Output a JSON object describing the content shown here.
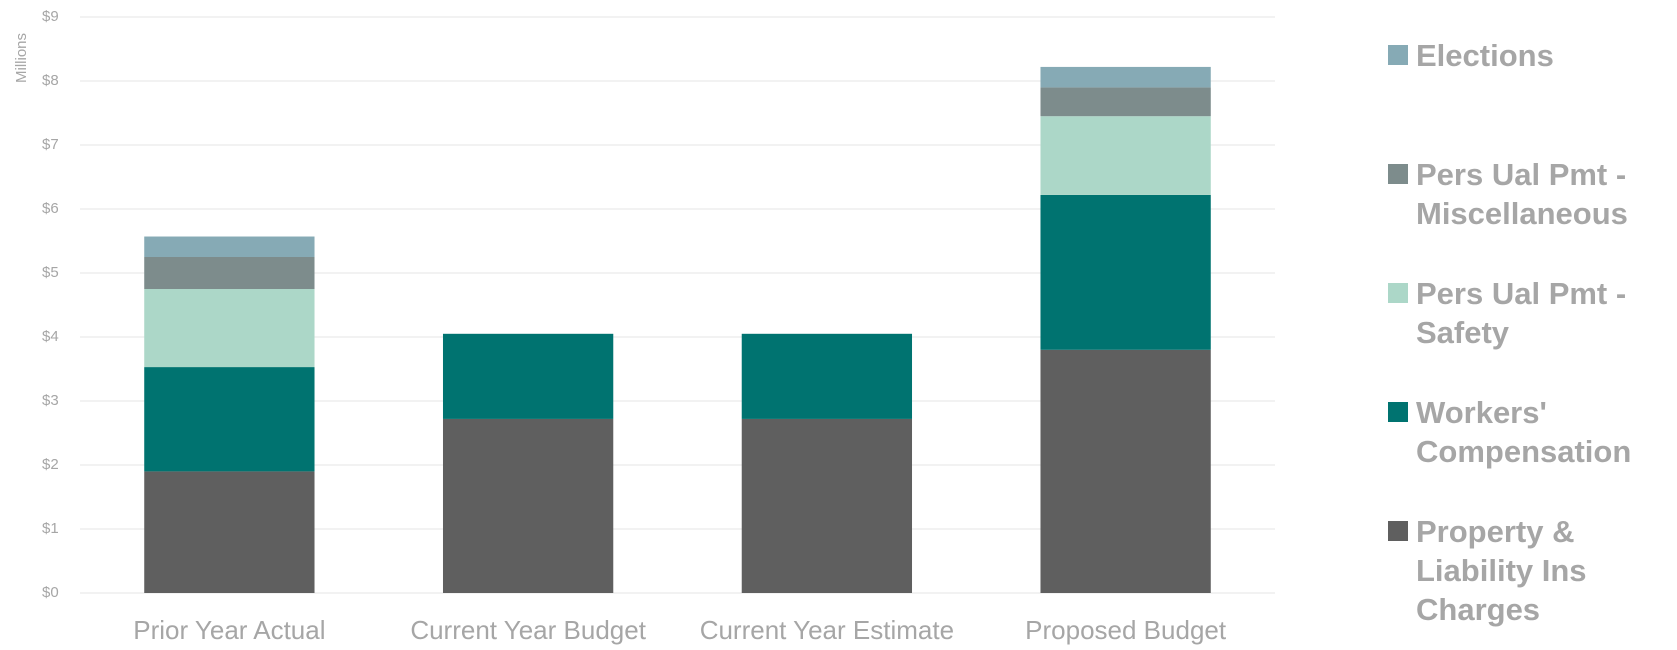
{
  "chart_data": {
    "type": "stacked_bar",
    "y_label": "Millions",
    "categories": [
      "Prior Year Actual",
      "Current Year Budget",
      "Current Year Estimate",
      "Proposed Budget"
    ],
    "series": [
      {
        "name": "Property & Liability Ins Charges",
        "color": "#5f5f5f",
        "values": [
          1.9,
          2.72,
          2.72,
          3.8
        ]
      },
      {
        "name": "Workers' Compensation",
        "color": "#007370",
        "values": [
          1.63,
          1.33,
          1.33,
          2.42
        ]
      },
      {
        "name": "Pers Ual Pmt - Safety",
        "color": "#acd7c8",
        "values": [
          1.22,
          0,
          0,
          1.23
        ]
      },
      {
        "name": "Pers Ual Pmt - Miscellaneous",
        "color": "#7d8c8c",
        "values": [
          0.5,
          0,
          0,
          0.45
        ]
      },
      {
        "name": "Elections",
        "color": "#86aab5",
        "values": [
          0.32,
          0,
          0,
          0.32
        ]
      }
    ],
    "ylim": [
      0,
      9
    ],
    "yticks": [
      {
        "value": 0,
        "label": "$0"
      },
      {
        "value": 1,
        "label": "$1"
      },
      {
        "value": 2,
        "label": "$2"
      },
      {
        "value": 3,
        "label": "$3"
      },
      {
        "value": 4,
        "label": "$4"
      },
      {
        "value": 5,
        "label": "$5"
      },
      {
        "value": 6,
        "label": "$6"
      },
      {
        "value": 7,
        "label": "$7"
      },
      {
        "value": 8,
        "label": "$8"
      },
      {
        "value": 9,
        "label": "$9"
      }
    ],
    "grid": true,
    "legend": "right"
  }
}
